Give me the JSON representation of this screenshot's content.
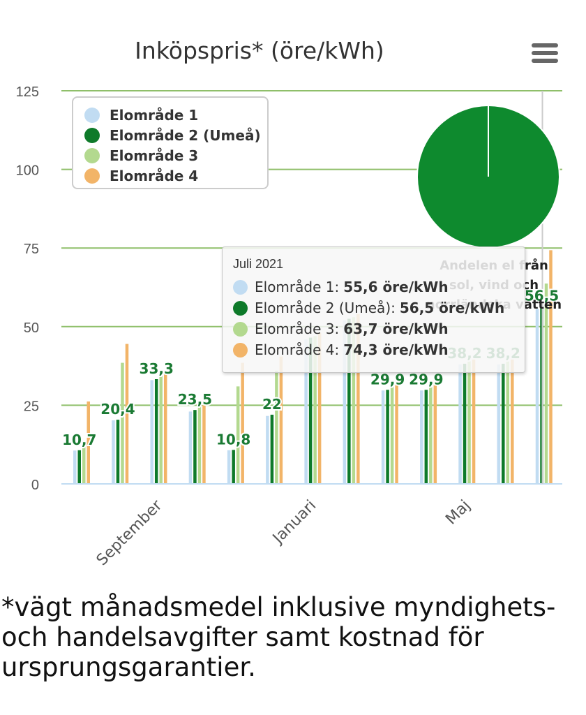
{
  "chart_data": {
    "type": "bar",
    "title": "Inköpspris* (öre/kWh)",
    "ylim": [
      0,
      125
    ],
    "yticks": [
      0,
      25,
      50,
      75,
      100,
      125
    ],
    "xtick_labels": [
      {
        "label": "September",
        "index": 2
      },
      {
        "label": "Januari",
        "index": 6
      },
      {
        "label": "Maj",
        "index": 10
      }
    ],
    "categories": [
      "2020-07",
      "2020-08",
      "2020-09",
      "2020-10",
      "2020-11",
      "2020-12",
      "2021-01",
      "2021-02",
      "2021-03",
      "2021-04",
      "2021-05",
      "2021-06",
      "2021-07"
    ],
    "series": [
      {
        "name": "Elområde 1",
        "color": "#c1dcf2",
        "values": [
          10.6,
          20.2,
          33.0,
          23.0,
          10.7,
          21.6,
          46.0,
          52.0,
          29.7,
          29.7,
          38.0,
          38.0,
          55.6
        ]
      },
      {
        "name": "Elområde 2 (Umeå)",
        "color": "#0e7a2a",
        "values": [
          10.7,
          20.4,
          33.3,
          23.5,
          10.8,
          22.0,
          46.5,
          52.5,
          29.9,
          29.9,
          38.2,
          38.2,
          56.5
        ]
      },
      {
        "name": "Elområde 3",
        "color": "#b3d98f",
        "values": [
          12.0,
          38.5,
          35.0,
          25.5,
          31.0,
          36.0,
          47.0,
          53.0,
          31.0,
          31.5,
          39.0,
          39.0,
          63.7
        ]
      },
      {
        "name": "Elområde 4",
        "color": "#f2b468",
        "values": [
          26.2,
          44.5,
          36.0,
          26.5,
          38.5,
          40.5,
          48.0,
          54.0,
          33.0,
          34.5,
          40.5,
          41.0,
          74.3
        ]
      }
    ],
    "data_labels": [
      "10,7",
      "20,4",
      "33,3",
      "23,5",
      "10,8",
      "22",
      "",
      "",
      "29,9",
      "29,9",
      "38,2",
      "38,2",
      "56,5"
    ],
    "grid": true,
    "gridline_color": "#8fbf6a",
    "legend_placement": "top-left",
    "pie": {
      "position": "top-right",
      "label": "Andelen el från sol, vind och norrländska vatten",
      "slices": [
        {
          "value": 100,
          "color": "#0e8a2e"
        }
      ]
    },
    "tooltip": {
      "title": "Juli 2021",
      "rows": [
        {
          "label": "Elområde 1:",
          "value": "55,6 öre/kWh",
          "color": "#c1dcf2"
        },
        {
          "label": "Elområde 2 (Umeå):",
          "value": "56,5 öre/kWh",
          "color": "#0e7a2a"
        },
        {
          "label": "Elområde 3:",
          "value": "63,7 öre/kWh",
          "color": "#b3d98f"
        },
        {
          "label": "Elområde 4:",
          "value": "74,3 öre/kWh",
          "color": "#f2b468"
        }
      ]
    }
  },
  "footnote": "*vägt månadsmedel inklusive myndighets- och handelsavgifter samt kostnad för ursprungsgarantier.",
  "icons": {
    "menu": "hamburger-menu-icon"
  }
}
